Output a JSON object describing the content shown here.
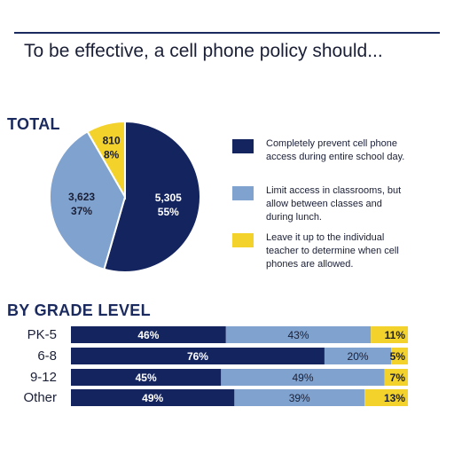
{
  "header": {
    "title": "To be effective, a cell phone policy should..."
  },
  "colors": {
    "prevent": "#14245f",
    "limit": "#7fa2cf",
    "teacher": "#f3d22b",
    "rule": "#1b2a5e"
  },
  "chart_data": [
    {
      "type": "pie",
      "title": "TOTAL",
      "categories": [
        "Completely prevent cell phone access during entire school day.",
        "Limit access in classrooms, but allow between classes and during lunch.",
        "Leave it up to the individual teacher to determine when cell phones are allowed."
      ],
      "values": [
        5305,
        3623,
        810
      ],
      "value_labels": [
        "5,305",
        "3,623",
        "810"
      ],
      "percent_labels": [
        "55%",
        "37%",
        "8%"
      ],
      "legend_position": "right"
    },
    {
      "type": "bar",
      "orientation": "horizontal",
      "stacked": true,
      "title": "BY GRADE LEVEL",
      "categories": [
        "PK-5",
        "6-8",
        "9-12",
        "Other"
      ],
      "series": [
        {
          "name": "Completely prevent cell phone access during entire school day.",
          "values": [
            46,
            76,
            45,
            49
          ],
          "labels": [
            "46%",
            "76%",
            "45%",
            "49%"
          ]
        },
        {
          "name": "Limit access in classrooms, but allow between classes and during lunch.",
          "values": [
            43,
            20,
            49,
            39
          ],
          "labels": [
            "43%",
            "20%",
            "49%",
            "39%"
          ]
        },
        {
          "name": "Leave it up to the individual teacher to determine when cell phones are allowed.",
          "values": [
            11,
            5,
            7,
            13
          ],
          "labels": [
            "11%",
            "5%",
            "7%",
            "13%"
          ]
        }
      ]
    }
  ]
}
